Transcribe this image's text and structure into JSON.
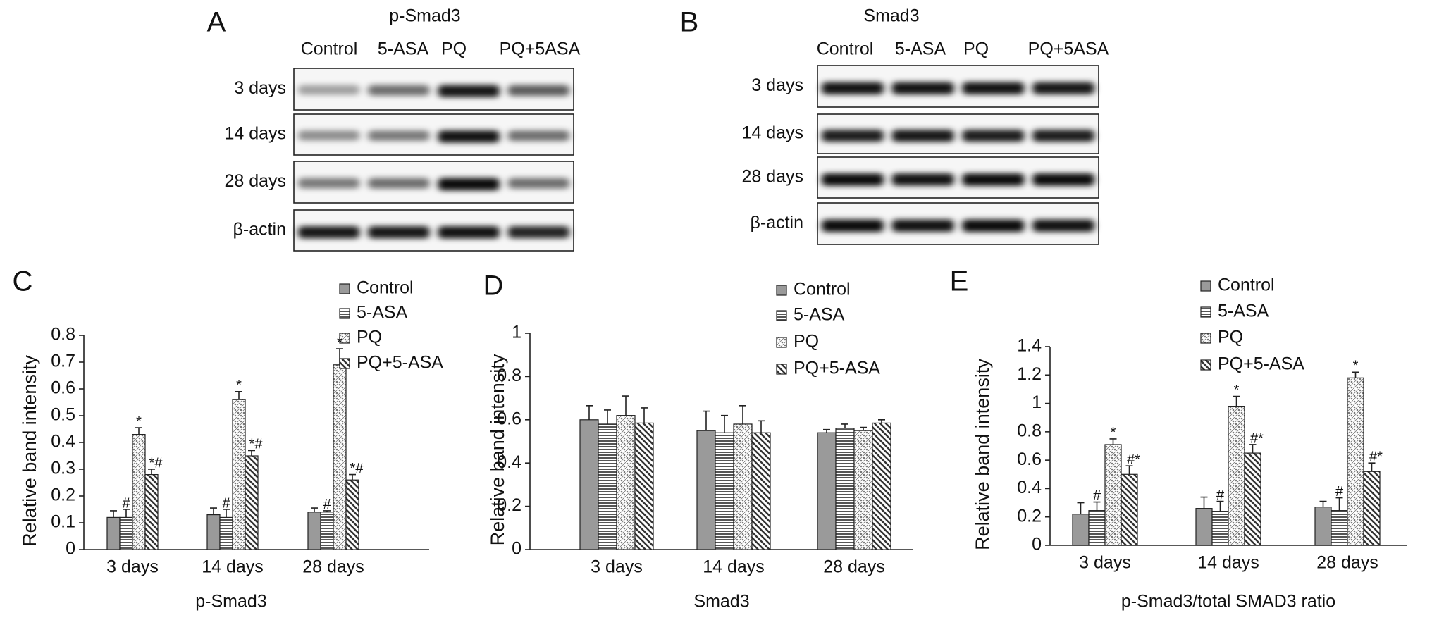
{
  "blots": [
    {
      "letter": "A",
      "title": "p-Smad3",
      "columns": [
        "Control",
        "5-ASA",
        "PQ",
        "PQ+5ASA"
      ],
      "rows": [
        "3 days",
        "14 days",
        "28 days",
        "β-actin"
      ]
    },
    {
      "letter": "B",
      "title": "Smad3",
      "columns": [
        "Control",
        "5-ASA",
        "PQ",
        "PQ+5ASA"
      ],
      "rows": [
        "3 days",
        "14 days",
        "28 days",
        "β-actin"
      ]
    }
  ],
  "chart_data": [
    {
      "type": "bar",
      "letter": "C",
      "xlabel": "p-Smad3",
      "ylabel": "Relative band intensity",
      "categories": [
        "3 days",
        "14 days",
        "28 days"
      ],
      "series": [
        {
          "name": "Control",
          "color": "#9a9a9a",
          "pattern": "solid",
          "values": [
            0.12,
            0.13,
            0.14
          ],
          "errors": [
            0.025,
            0.025,
            0.015
          ]
        },
        {
          "name": "5-ASA",
          "color": "#555555",
          "pattern": "hlines",
          "values": [
            0.12,
            0.12,
            0.14
          ],
          "errors": [
            0.03,
            0.03,
            0.005
          ],
          "sig": [
            "#",
            "#",
            "#"
          ]
        },
        {
          "name": "PQ",
          "color": "#777777",
          "pattern": "dots",
          "values": [
            0.43,
            0.56,
            0.69
          ],
          "errors": [
            0.025,
            0.03,
            0.06
          ],
          "sig": [
            "*",
            "*",
            "*"
          ]
        },
        {
          "name": "PQ+5-ASA",
          "color": "#333333",
          "pattern": "diag",
          "values": [
            0.28,
            0.35,
            0.26
          ],
          "errors": [
            0.02,
            0.02,
            0.02
          ],
          "sig": [
            "*#",
            "*#",
            "*#"
          ]
        }
      ],
      "ylim": [
        0,
        0.8
      ],
      "yticks": [
        0,
        0.1,
        0.2,
        0.3,
        0.4,
        0.5,
        0.6,
        0.7,
        0.8
      ]
    },
    {
      "type": "bar",
      "letter": "D",
      "xlabel": "Smad3",
      "ylabel": "Relative band intensity",
      "categories": [
        "3 days",
        "14 days",
        "28 days"
      ],
      "series": [
        {
          "name": "Control",
          "color": "#9a9a9a",
          "pattern": "solid",
          "values": [
            0.6,
            0.55,
            0.54
          ],
          "errors": [
            0.065,
            0.09,
            0.015
          ]
        },
        {
          "name": "5-ASA",
          "color": "#555555",
          "pattern": "hlines",
          "values": [
            0.58,
            0.54,
            0.56
          ],
          "errors": [
            0.065,
            0.08,
            0.02
          ]
        },
        {
          "name": "PQ",
          "color": "#777777",
          "pattern": "dots",
          "values": [
            0.62,
            0.58,
            0.55
          ],
          "errors": [
            0.09,
            0.085,
            0.015
          ]
        },
        {
          "name": "PQ+5-ASA",
          "color": "#333333",
          "pattern": "diag",
          "values": [
            0.585,
            0.54,
            0.585
          ],
          "errors": [
            0.07,
            0.055,
            0.015
          ]
        }
      ],
      "ylim": [
        0,
        1
      ],
      "yticks": [
        0,
        0.2,
        0.4,
        0.6,
        0.8,
        1
      ]
    },
    {
      "type": "bar",
      "letter": "E",
      "xlabel": "p-Smad3/total SMAD3 ratio",
      "ylabel": "Relative band intensity",
      "categories": [
        "3 days",
        "14 days",
        "28 days"
      ],
      "series": [
        {
          "name": "Control",
          "color": "#9a9a9a",
          "pattern": "solid",
          "values": [
            0.22,
            0.26,
            0.27
          ],
          "errors": [
            0.08,
            0.08,
            0.04
          ]
        },
        {
          "name": "5-ASA",
          "color": "#555555",
          "pattern": "hlines",
          "values": [
            0.245,
            0.24,
            0.245
          ],
          "errors": [
            0.06,
            0.07,
            0.09
          ],
          "sig": [
            "#",
            "#",
            "#"
          ]
        },
        {
          "name": "PQ",
          "color": "#777777",
          "pattern": "dots",
          "values": [
            0.71,
            0.98,
            1.18
          ],
          "errors": [
            0.04,
            0.07,
            0.04
          ],
          "sig": [
            "*",
            "*",
            "*"
          ]
        },
        {
          "name": "PQ+5-ASA",
          "color": "#333333",
          "pattern": "diag",
          "values": [
            0.5,
            0.65,
            0.52
          ],
          "errors": [
            0.06,
            0.06,
            0.06
          ],
          "sig": [
            "#*",
            "#*",
            "#*"
          ]
        }
      ],
      "ylim": [
        0,
        1.4
      ],
      "yticks": [
        0,
        0.2,
        0.4,
        0.6,
        0.8,
        1,
        1.2,
        1.4
      ]
    }
  ]
}
